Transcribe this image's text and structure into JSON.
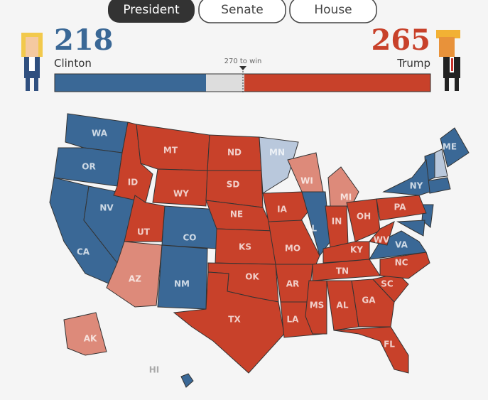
{
  "tabs": [
    "President",
    "Senate",
    "House"
  ],
  "score": {
    "left": {
      "value": "218",
      "name": "Clinton",
      "color": "#3a6896"
    },
    "right": {
      "value": "265",
      "name": "Trump",
      "color": "#c8412a"
    },
    "threshold": "270 to win"
  },
  "states": [
    {
      "label": "WA",
      "color": "#3a6896"
    },
    {
      "label": "OR",
      "color": "#3a6896"
    },
    {
      "label": "CA",
      "color": "#3a6896"
    },
    {
      "label": "NV",
      "color": "#3a6896"
    },
    {
      "label": "ID",
      "color": "#c8412a"
    },
    {
      "label": "MT",
      "color": "#c8412a"
    },
    {
      "label": "WY",
      "color": "#c8412a"
    },
    {
      "label": "UT",
      "color": "#c8412a"
    },
    {
      "label": "CO",
      "color": "#3a6896"
    },
    {
      "label": "AZ",
      "color": "#dd8a7a"
    },
    {
      "label": "NM",
      "color": "#3a6896"
    },
    {
      "label": "ND",
      "color": "#c8412a"
    },
    {
      "label": "SD",
      "color": "#c8412a"
    },
    {
      "label": "NE",
      "color": "#c8412a"
    },
    {
      "label": "KS",
      "color": "#c8412a"
    },
    {
      "label": "OK",
      "color": "#c8412a"
    },
    {
      "label": "TX",
      "color": "#c8412a"
    },
    {
      "label": "MN",
      "color": "#b9c8dc"
    },
    {
      "label": "IA",
      "color": "#c8412a"
    },
    {
      "label": "MO",
      "color": "#c8412a"
    },
    {
      "label": "AR",
      "color": "#c8412a"
    },
    {
      "label": "LA",
      "color": "#c8412a"
    },
    {
      "label": "WI",
      "color": "#dd8a7a"
    },
    {
      "label": "IL",
      "color": "#3a6896"
    },
    {
      "label": "MI",
      "color": "#dd8a7a"
    },
    {
      "label": "IN",
      "color": "#c8412a"
    },
    {
      "label": "OH",
      "color": "#c8412a"
    },
    {
      "label": "KY",
      "color": "#c8412a"
    },
    {
      "label": "TN",
      "color": "#c8412a"
    },
    {
      "label": "MS",
      "color": "#c8412a"
    },
    {
      "label": "AL",
      "color": "#c8412a"
    },
    {
      "label": "GA",
      "color": "#c8412a"
    },
    {
      "label": "FL",
      "color": "#c8412a"
    },
    {
      "label": "SC",
      "color": "#c8412a"
    },
    {
      "label": "NC",
      "color": "#c8412a"
    },
    {
      "label": "VA",
      "color": "#3a6896"
    },
    {
      "label": "WV",
      "color": "#c8412a"
    },
    {
      "label": "PA",
      "color": "#c8412a"
    },
    {
      "label": "NY",
      "color": "#3a6896"
    },
    {
      "label": "ME",
      "color": "#3a6896"
    },
    {
      "label": "AK",
      "color": "#dd8a7a"
    },
    {
      "label": "HI",
      "color": "#3a6896"
    }
  ]
}
